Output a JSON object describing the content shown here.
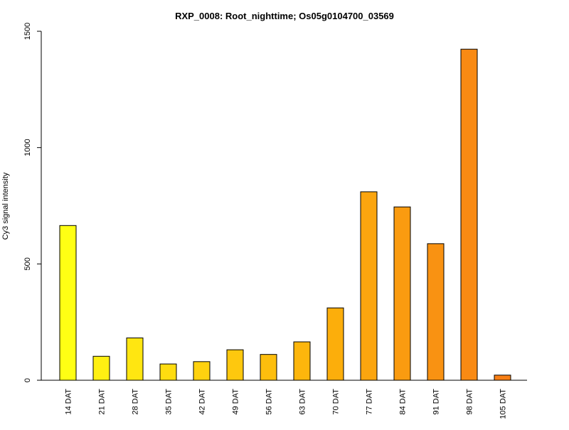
{
  "chart_data": {
    "type": "bar",
    "title": "RXP_0008: Root_nighttime; Os05g0104700_03569",
    "xlabel": "",
    "ylabel": "Cy3 signal intensity",
    "ylim": [
      0,
      1500
    ],
    "yticks": [
      0,
      500,
      1000,
      1500
    ],
    "grid": false,
    "legend": "none",
    "categories": [
      "14 DAT",
      "21 DAT",
      "28 DAT",
      "35 DAT",
      "42 DAT",
      "49 DAT",
      "56 DAT",
      "63 DAT",
      "70 DAT",
      "77 DAT",
      "84 DAT",
      "91 DAT",
      "98 DAT",
      "105 DAT"
    ],
    "values": [
      665,
      103,
      182,
      70,
      80,
      131,
      111,
      165,
      311,
      810,
      745,
      587,
      1423,
      22
    ],
    "colors": [
      "#ffff14",
      "#fff012",
      "#ffe611",
      "#ffdc10",
      "#ffd20f",
      "#fec80e",
      "#fdbe0d",
      "#fdb60c",
      "#fcae0b",
      "#fba50f",
      "#fa9b10",
      "#f99212",
      "#f98a13",
      "#f87f15"
    ]
  }
}
